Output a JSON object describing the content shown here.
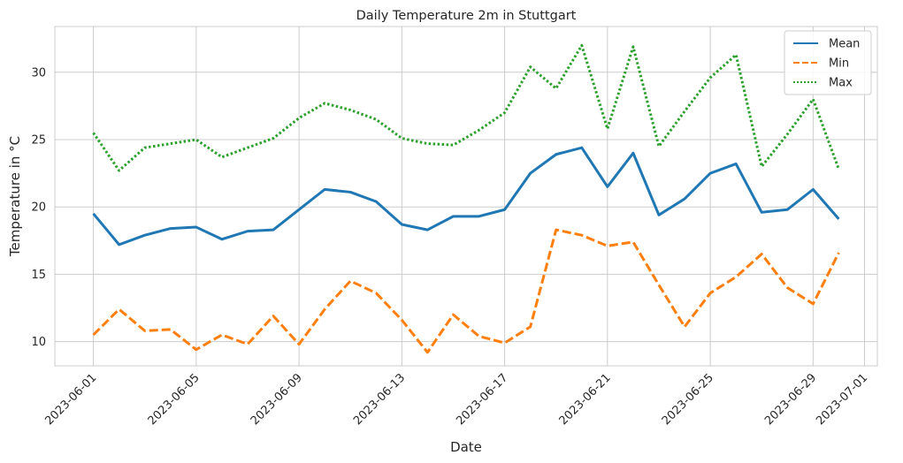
{
  "chart_data": {
    "type": "line",
    "title": "Daily Temperature 2m in Stuttgart",
    "xlabel": "Date",
    "ylabel": "Temperature in °C",
    "x": [
      "2023-06-01",
      "2023-06-02",
      "2023-06-03",
      "2023-06-04",
      "2023-06-05",
      "2023-06-06",
      "2023-06-07",
      "2023-06-08",
      "2023-06-09",
      "2023-06-10",
      "2023-06-11",
      "2023-06-12",
      "2023-06-13",
      "2023-06-14",
      "2023-06-15",
      "2023-06-16",
      "2023-06-17",
      "2023-06-18",
      "2023-06-19",
      "2023-06-20",
      "2023-06-21",
      "2023-06-22",
      "2023-06-23",
      "2023-06-24",
      "2023-06-25",
      "2023-06-26",
      "2023-06-27",
      "2023-06-28",
      "2023-06-29",
      "2023-06-30"
    ],
    "xlim": [
      "2023-05-30T12:00",
      "2023-07-01T12:00"
    ],
    "ylim": [
      8.2,
      33.4
    ],
    "x_ticks": [
      "2023-06-01",
      "2023-06-05",
      "2023-06-09",
      "2023-06-13",
      "2023-06-17",
      "2023-06-21",
      "2023-06-25",
      "2023-06-29",
      "2023-07-01"
    ],
    "y_ticks": [
      10,
      15,
      20,
      25,
      30
    ],
    "grid": true,
    "legend_position": "top-right",
    "series": [
      {
        "name": "Mean",
        "color": "#1f77b4",
        "style": "solid",
        "values": [
          19.5,
          17.2,
          17.9,
          18.4,
          18.5,
          17.6,
          18.2,
          18.3,
          19.8,
          21.3,
          21.1,
          20.4,
          18.7,
          18.3,
          19.3,
          19.3,
          19.8,
          22.5,
          23.9,
          24.4,
          21.5,
          24.0,
          19.4,
          20.6,
          22.5,
          23.2,
          19.6,
          19.8,
          21.3,
          19.1
        ]
      },
      {
        "name": "Min",
        "color": "#ff7f0e",
        "style": "dashed",
        "values": [
          10.5,
          12.4,
          10.8,
          10.9,
          9.4,
          10.5,
          9.8,
          11.9,
          9.8,
          12.4,
          14.5,
          13.6,
          11.6,
          9.2,
          12.0,
          10.4,
          9.9,
          11.1,
          18.3,
          17.9,
          17.1,
          17.4,
          14.2,
          11.1,
          13.6,
          14.8,
          16.5,
          14.0,
          12.8,
          16.6
        ]
      },
      {
        "name": "Max",
        "color": "#2ca02c",
        "style": "dotted",
        "values": [
          25.5,
          22.7,
          24.4,
          24.7,
          25.0,
          23.7,
          24.4,
          25.1,
          26.6,
          27.7,
          27.2,
          26.5,
          25.1,
          24.7,
          24.6,
          25.7,
          27.0,
          30.4,
          28.8,
          32.0,
          25.8,
          31.9,
          24.5,
          27.1,
          29.6,
          31.3,
          23.0,
          25.4,
          28.0,
          22.8
        ]
      }
    ]
  }
}
